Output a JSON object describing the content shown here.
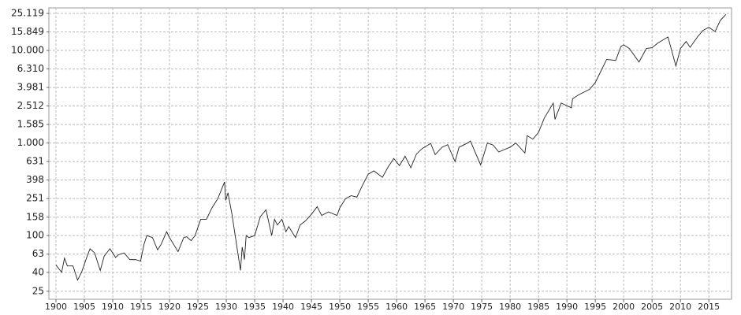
{
  "chart_data": {
    "type": "line",
    "color": "#222222",
    "log_scale": true,
    "grid": true,
    "x": [
      1900,
      1901,
      1901.5,
      1902,
      1903,
      1903.8,
      1904.5,
      1905.5,
      1906,
      1906.8,
      1907.8,
      1908.5,
      1909.5,
      1910.5,
      1911,
      1912,
      1913,
      1914,
      1914.9,
      1915.5,
      1916,
      1917,
      1917.9,
      1918.5,
      1919.5,
      1920,
      1921.5,
      1922.5,
      1923,
      1923.8,
      1924.5,
      1925.5,
      1926.5,
      1927.5,
      1928.5,
      1929.7,
      1929.9,
      1930.3,
      1931,
      1932.5,
      1932.8,
      1933.2,
      1933.5,
      1934,
      1935,
      1936,
      1937,
      1938,
      1938.5,
      1939,
      1939.8,
      1940.5,
      1941,
      1942.2,
      1943,
      1944,
      1945,
      1946,
      1946.8,
      1948,
      1949.5,
      1950,
      1951,
      1952,
      1953,
      1954,
      1955,
      1956,
      1957.5,
      1958.5,
      1959.5,
      1960.5,
      1961.5,
      1962.5,
      1963.5,
      1964.5,
      1966,
      1966.8,
      1968,
      1969,
      1970.3,
      1971,
      1972.5,
      1973,
      1974.8,
      1976,
      1977,
      1978,
      1979,
      1980,
      1981,
      1982.6,
      1983,
      1984,
      1985,
      1986,
      1987.6,
      1987.9,
      1989,
      1990.8,
      1991,
      1992,
      1994,
      1995,
      1996,
      1997,
      1998.6,
      1999.5,
      2000,
      2001,
      2002.7,
      2004,
      2005,
      2006,
      2007.8,
      2009.2,
      2010,
      2011,
      2011.7,
      2013,
      2014,
      2015,
      2016.1,
      2017,
      2018
    ],
    "values": [
      48,
      40,
      57,
      47,
      47,
      33,
      40,
      60,
      72,
      65,
      42,
      60,
      72,
      58,
      62,
      65,
      55,
      55,
      53,
      80,
      100,
      95,
      70,
      80,
      110,
      95,
      67,
      95,
      97,
      88,
      100,
      150,
      150,
      200,
      250,
      380,
      240,
      290,
      170,
      42,
      75,
      55,
      100,
      95,
      100,
      160,
      190,
      100,
      150,
      130,
      150,
      110,
      125,
      95,
      130,
      145,
      170,
      205,
      165,
      180,
      165,
      200,
      250,
      270,
      260,
      350,
      460,
      500,
      425,
      550,
      680,
      570,
      720,
      540,
      760,
      870,
      990,
      750,
      900,
      960,
      630,
      900,
      1000,
      1050,
      580,
      1000,
      950,
      800,
      850,
      900,
      1000,
      780,
      1200,
      1100,
      1300,
      1850,
      2700,
      1800,
      2700,
      2400,
      3000,
      3300,
      3800,
      4500,
      6000,
      8000,
      7800,
      11000,
      11500,
      10500,
      7500,
      10500,
      10700,
      12000,
      14000,
      6800,
      10500,
      12500,
      10800,
      14000,
      16500,
      17800,
      16000,
      21000,
      24500
    ],
    "xlim": [
      1898.75,
      2019
    ],
    "xticks": [
      1900,
      1905,
      1910,
      1915,
      1920,
      1925,
      1930,
      1935,
      1940,
      1945,
      1950,
      1955,
      1960,
      1965,
      1970,
      1975,
      1980,
      1985,
      1990,
      1995,
      2000,
      2005,
      2010,
      2015
    ],
    "ylim": [
      20.5,
      28840
    ],
    "yticks": [
      25,
      40,
      63,
      100,
      158,
      251,
      398,
      631,
      {
        "value": 1000,
        "label": "1.000"
      },
      {
        "value": 1585,
        "label": "1.585"
      },
      {
        "value": 2512,
        "label": "2.512"
      },
      {
        "value": 3981,
        "label": "3.981"
      },
      {
        "value": 6310,
        "label": "6.310"
      },
      {
        "value": 10000,
        "label": "10.000"
      },
      {
        "value": 15849,
        "label": "15.849"
      },
      {
        "value": 25119,
        "label": "25.119"
      }
    ]
  }
}
